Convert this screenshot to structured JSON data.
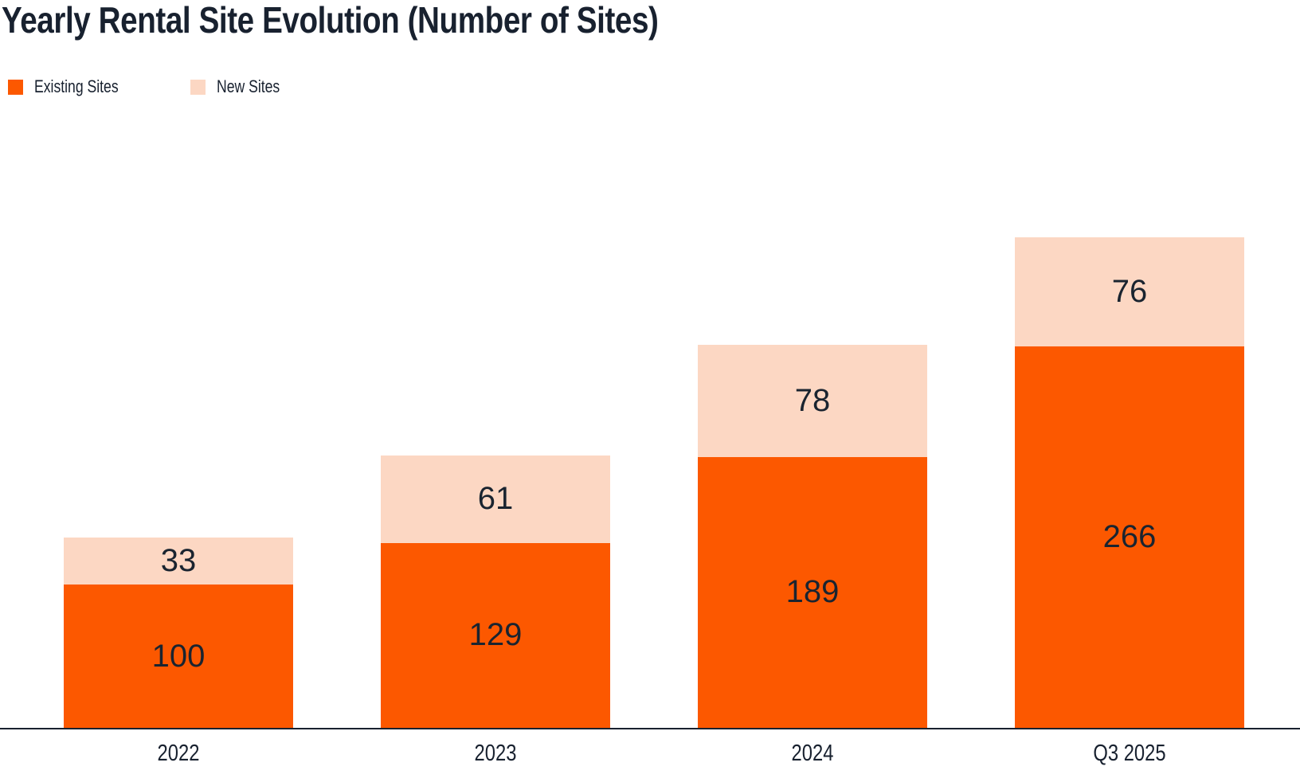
{
  "chart_data": {
    "type": "bar",
    "stacked": true,
    "title": "Yearly Rental Site Evolution (Number of Sites)",
    "categories": [
      "2022",
      "2023",
      "2024",
      "Q3 2025"
    ],
    "series": [
      {
        "name": "Existing Sites",
        "color": "#FC5800",
        "values": [
          100,
          129,
          189,
          266
        ]
      },
      {
        "name": "New Sites",
        "color": "#FCD7C3",
        "values": [
          33,
          61,
          78,
          76
        ]
      }
    ],
    "totals": [
      133,
      190,
      267,
      342
    ],
    "value_labels": "inside-segments",
    "legend_position": "top-left",
    "grid": false,
    "xlabel": "",
    "ylabel": "",
    "axis_line_color": "#18212F",
    "text_color": "#18212F"
  }
}
